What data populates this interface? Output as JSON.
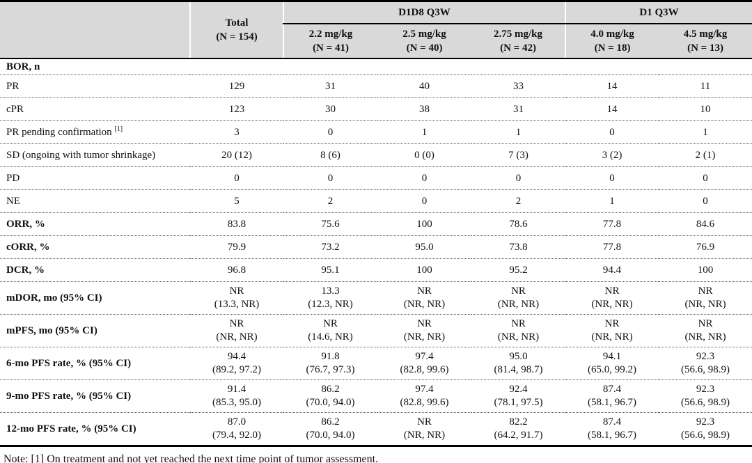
{
  "table": {
    "header": {
      "total": {
        "line1": "Total",
        "line2": "(N = 154)"
      },
      "groups": [
        {
          "label": "D1D8 Q3W",
          "columns": [
            {
              "dose": "2.2 mg/kg",
              "n": "(N = 41)"
            },
            {
              "dose": "2.5 mg/kg",
              "n": "(N = 40)"
            },
            {
              "dose": "2.75 mg/kg",
              "n": "(N = 42)"
            }
          ]
        },
        {
          "label": "D1 Q3W",
          "columns": [
            {
              "dose": "4.0 mg/kg",
              "n": "(N = 18)"
            },
            {
              "dose": "4.5 mg/kg",
              "n": "(N = 13)"
            }
          ]
        }
      ]
    },
    "rows": [
      {
        "label": "BOR, n",
        "bold": true,
        "indent": 0,
        "values": [
          "",
          "",
          "",
          "",
          "",
          ""
        ]
      },
      {
        "label": "PR",
        "bold": false,
        "indent": 1,
        "values": [
          "129",
          "31",
          "40",
          "33",
          "14",
          "11"
        ]
      },
      {
        "label": "cPR",
        "bold": false,
        "indent": 2,
        "values": [
          "123",
          "30",
          "38",
          "31",
          "14",
          "10"
        ]
      },
      {
        "label": "PR pending confirmation",
        "sup": "[1]",
        "bold": false,
        "indent": 2,
        "values": [
          "3",
          "0",
          "1",
          "1",
          "0",
          "1"
        ]
      },
      {
        "label": "SD (ongoing with tumor shrinkage)",
        "bold": false,
        "indent": 1,
        "values": [
          "20 (12)",
          "8 (6)",
          "0 (0)",
          "7 (3)",
          "3 (2)",
          "2 (1)"
        ]
      },
      {
        "label": "PD",
        "bold": false,
        "indent": 1,
        "values": [
          "0",
          "0",
          "0",
          "0",
          "0",
          "0"
        ]
      },
      {
        "label": "NE",
        "bold": false,
        "indent": 1,
        "values": [
          "5",
          "2",
          "0",
          "2",
          "1",
          "0"
        ]
      },
      {
        "label": "ORR, %",
        "bold": true,
        "indent": 0,
        "values": [
          "83.8",
          "75.6",
          "100",
          "78.6",
          "77.8",
          "84.6"
        ]
      },
      {
        "label": "cORR, %",
        "bold": true,
        "indent": 0,
        "values": [
          "79.9",
          "73.2",
          "95.0",
          "73.8",
          "77.8",
          "76.9"
        ]
      },
      {
        "label": "DCR, %",
        "bold": true,
        "indent": 0,
        "values": [
          "96.8",
          "95.1",
          "100",
          "95.2",
          "94.4",
          "100"
        ]
      },
      {
        "label": "mDOR, mo (95% CI)",
        "bold": true,
        "indent": 0,
        "values": [
          [
            "NR",
            "(13.3, NR)"
          ],
          [
            "13.3",
            "(12.3, NR)"
          ],
          [
            "NR",
            "(NR, NR)"
          ],
          [
            "NR",
            "(NR, NR)"
          ],
          [
            "NR",
            "(NR, NR)"
          ],
          [
            "NR",
            "(NR, NR)"
          ]
        ]
      },
      {
        "label": "mPFS, mo (95% CI)",
        "bold": true,
        "indent": 0,
        "values": [
          [
            "NR",
            "(NR, NR)"
          ],
          [
            "NR",
            "(14.6, NR)"
          ],
          [
            "NR",
            "(NR, NR)"
          ],
          [
            "NR",
            "(NR, NR)"
          ],
          [
            "NR",
            "(NR, NR)"
          ],
          [
            "NR",
            "(NR, NR)"
          ]
        ]
      },
      {
        "label": "6-mo PFS rate, % (95% CI)",
        "bold": true,
        "indent": 0,
        "values": [
          [
            "94.4",
            "(89.2, 97.2)"
          ],
          [
            "91.8",
            "(76.7, 97.3)"
          ],
          [
            "97.4",
            "(82.8, 99.6)"
          ],
          [
            "95.0",
            "(81.4, 98.7)"
          ],
          [
            "94.1",
            "(65.0, 99.2)"
          ],
          [
            "92.3",
            "(56.6, 98.9)"
          ]
        ]
      },
      {
        "label": "9-mo PFS rate, % (95% CI)",
        "bold": true,
        "indent": 0,
        "values": [
          [
            "91.4",
            "(85.3, 95.0)"
          ],
          [
            "86.2",
            "(70.0, 94.0)"
          ],
          [
            "97.4",
            "(82.8, 99.6)"
          ],
          [
            "92.4",
            "(78.1, 97.5)"
          ],
          [
            "87.4",
            "(58.1, 96.7)"
          ],
          [
            "92.3",
            "(56.6, 98.9)"
          ]
        ]
      },
      {
        "label": "12-mo PFS rate, % (95% CI)",
        "bold": true,
        "indent": 0,
        "values": [
          [
            "87.0",
            "(79.4, 92.0)"
          ],
          [
            "86.2",
            "(70.0, 94.0)"
          ],
          [
            "NR",
            "(NR, NR)"
          ],
          [
            "82.2",
            "(64.2, 91.7)"
          ],
          [
            "87.4",
            "(58.1, 96.7)"
          ],
          [
            "92.3",
            "(56.6, 98.9)"
          ]
        ]
      }
    ]
  },
  "note": "Note: [1] On treatment and not yet reached the next time point of tumor assessment.",
  "colors": {
    "header_bg": "#d9d9d9",
    "border": "#000000",
    "row_divider": "#555555"
  }
}
